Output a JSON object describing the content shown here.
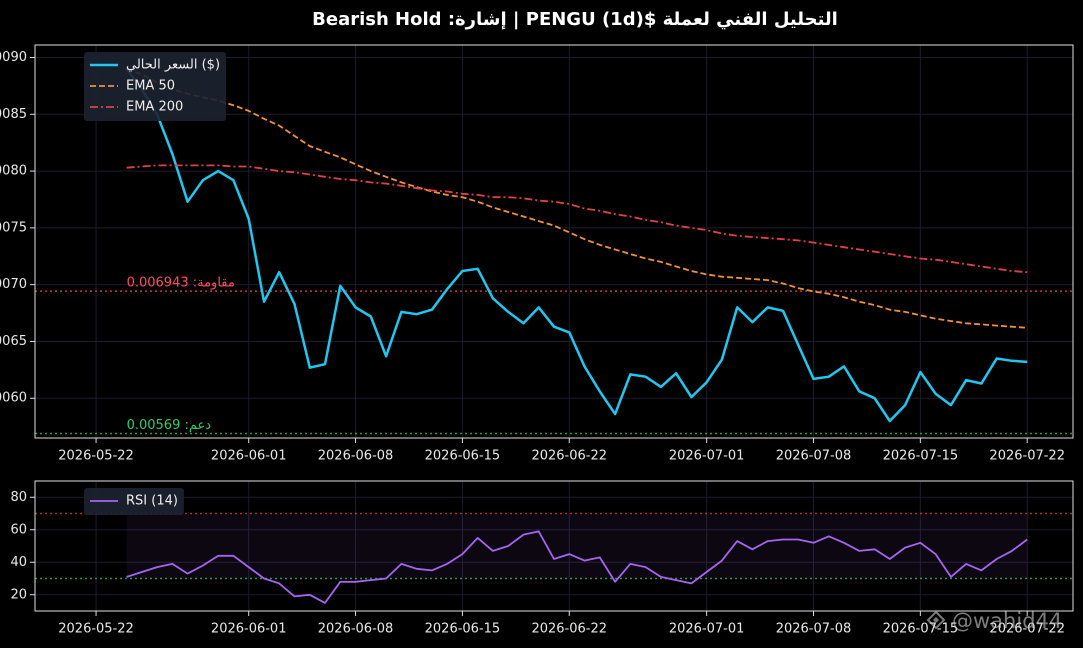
{
  "chart_data": [
    {
      "type": "line",
      "title": "التحليل الفني لعملة $PENGU (1d) | إشارة: Bearish Hold",
      "x": [
        "2026-05-24",
        "2026-05-25",
        "2026-05-26",
        "2026-05-27",
        "2026-05-28",
        "2026-05-29",
        "2026-05-30",
        "2026-05-31",
        "2026-06-01",
        "2026-06-02",
        "2026-06-03",
        "2026-06-04",
        "2026-06-05",
        "2026-06-06",
        "2026-06-07",
        "2026-06-08",
        "2026-06-09",
        "2026-06-10",
        "2026-06-11",
        "2026-06-12",
        "2026-06-13",
        "2026-06-14",
        "2026-06-15",
        "2026-06-16",
        "2026-06-17",
        "2026-06-18",
        "2026-06-19",
        "2026-06-20",
        "2026-06-21",
        "2026-06-22",
        "2026-06-23",
        "2026-06-24",
        "2026-06-25",
        "2026-06-26",
        "2026-06-27",
        "2026-06-28",
        "2026-06-29",
        "2026-06-30",
        "2026-07-01",
        "2026-07-02",
        "2026-07-03",
        "2026-07-04",
        "2026-07-05",
        "2026-07-06",
        "2026-07-07",
        "2026-07-08",
        "2026-07-09",
        "2026-07-10",
        "2026-07-11",
        "2026-07-12",
        "2026-07-13",
        "2026-07-14",
        "2026-07-15",
        "2026-07-16",
        "2026-07-17",
        "2026-07-18",
        "2026-07-19",
        "2026-07-20",
        "2026-07-21",
        "2026-07-22"
      ],
      "series": [
        {
          "name": "السعر الحالي ($)",
          "color": "#22c7f0",
          "dash": "solid",
          "width": 2.5,
          "values": [
            0.0089,
            0.00872,
            0.0085,
            0.00815,
            0.00773,
            0.00792,
            0.008,
            0.00792,
            0.00758,
            0.00685,
            0.00711,
            0.00683,
            0.00627,
            0.0063,
            0.00699,
            0.0068,
            0.00672,
            0.00637,
            0.00676,
            0.00674,
            0.00678,
            0.00696,
            0.00712,
            0.00714,
            0.00688,
            0.00676,
            0.00666,
            0.0068,
            0.00663,
            0.00658,
            0.00628,
            0.00606,
            0.00586,
            0.00621,
            0.00619,
            0.0061,
            0.00622,
            0.00601,
            0.00614,
            0.00634,
            0.0068,
            0.00667,
            0.0068,
            0.00677,
            0.00647,
            0.00617,
            0.00619,
            0.00628,
            0.00606,
            0.006,
            0.0058,
            0.00594,
            0.00623,
            0.00604,
            0.00594,
            0.00616,
            0.00613,
            0.00635,
            0.00633,
            0.00632
          ]
        },
        {
          "name": "EMA 50",
          "color": "#f0913a",
          "dash": "dashed",
          "width": 1.8,
          "values": [
            0.0089,
            0.00885,
            0.00878,
            0.00872,
            0.00868,
            0.00865,
            0.00862,
            0.00858,
            0.00853,
            0.00846,
            0.0084,
            0.00831,
            0.00822,
            0.00817,
            0.00812,
            0.00806,
            0.008,
            0.00795,
            0.0079,
            0.00786,
            0.00782,
            0.00779,
            0.00777,
            0.00773,
            0.00768,
            0.00764,
            0.0076,
            0.00756,
            0.00752,
            0.00746,
            0.0074,
            0.00735,
            0.00731,
            0.00727,
            0.00723,
            0.0072,
            0.00716,
            0.00712,
            0.00709,
            0.00707,
            0.00706,
            0.00705,
            0.00704,
            0.00701,
            0.00697,
            0.00694,
            0.00692,
            0.00689,
            0.00685,
            0.00682,
            0.00678,
            0.00676,
            0.00673,
            0.0067,
            0.00668,
            0.00666,
            0.00665,
            0.00664,
            0.00663,
            0.00662
          ]
        },
        {
          "name": "EMA 200",
          "color": "#e0404e",
          "dash": "dashdot",
          "width": 1.8,
          "values": [
            0.00803,
            0.00804,
            0.00805,
            0.00805,
            0.00805,
            0.00805,
            0.00805,
            0.00804,
            0.00804,
            0.00802,
            0.008,
            0.00799,
            0.00797,
            0.00795,
            0.00793,
            0.00792,
            0.0079,
            0.00789,
            0.00787,
            0.00785,
            0.00783,
            0.00782,
            0.0078,
            0.00779,
            0.00777,
            0.00777,
            0.00776,
            0.00774,
            0.00773,
            0.00771,
            0.00767,
            0.00765,
            0.00762,
            0.0076,
            0.00757,
            0.00755,
            0.00752,
            0.0075,
            0.00748,
            0.00745,
            0.00743,
            0.00742,
            0.00741,
            0.0074,
            0.00739,
            0.00737,
            0.00735,
            0.00733,
            0.00731,
            0.00729,
            0.00727,
            0.00725,
            0.00723,
            0.00722,
            0.0072,
            0.00718,
            0.00716,
            0.00714,
            0.00712,
            0.00711
          ]
        }
      ],
      "hlines": [
        {
          "value": 0.006943,
          "label": "مقاومة: 0.006943",
          "color": "#ff4d5e"
        },
        {
          "value": 0.00569,
          "label": "دعم: 0.00569",
          "color": "#2ecc71"
        }
      ],
      "xlim": [
        "2026-05-18",
        "2026-07-25"
      ],
      "xticks": [
        "2026-05-22",
        "2026-06-01",
        "2026-06-08",
        "2026-06-15",
        "2026-06-22",
        "2026-07-01",
        "2026-07-08",
        "2026-07-15",
        "2026-07-22"
      ],
      "ylim": [
        0.00565,
        0.00911
      ],
      "yticks": [
        {
          "value": 0.006,
          "label": "0.0060"
        },
        0.0065,
        {
          "value": 0.007,
          "label": "0.0070"
        },
        0.0075,
        {
          "value": 0.008,
          "label": "0.0080"
        },
        0.0085,
        {
          "value": 0.009,
          "label": "0.0090"
        }
      ],
      "grid": true,
      "legend": "upper left"
    },
    {
      "type": "line",
      "x": [
        "2026-05-24",
        "2026-05-25",
        "2026-05-26",
        "2026-05-27",
        "2026-05-28",
        "2026-05-29",
        "2026-05-30",
        "2026-05-31",
        "2026-06-01",
        "2026-06-02",
        "2026-06-03",
        "2026-06-04",
        "2026-06-05",
        "2026-06-06",
        "2026-06-07",
        "2026-06-08",
        "2026-06-09",
        "2026-06-10",
        "2026-06-11",
        "2026-06-12",
        "2026-06-13",
        "2026-06-14",
        "2026-06-15",
        "2026-06-16",
        "2026-06-17",
        "2026-06-18",
        "2026-06-19",
        "2026-06-20",
        "2026-06-21",
        "2026-06-22",
        "2026-06-23",
        "2026-06-24",
        "2026-06-25",
        "2026-06-26",
        "2026-06-27",
        "2026-06-28",
        "2026-06-29",
        "2026-06-30",
        "2026-07-01",
        "2026-07-02",
        "2026-07-03",
        "2026-07-04",
        "2026-07-05",
        "2026-07-06",
        "2026-07-07",
        "2026-07-08",
        "2026-07-09",
        "2026-07-10",
        "2026-07-11",
        "2026-07-12",
        "2026-07-13",
        "2026-07-14",
        "2026-07-15",
        "2026-07-16",
        "2026-07-17",
        "2026-07-18",
        "2026-07-19",
        "2026-07-20",
        "2026-07-21",
        "2026-07-22"
      ],
      "series": [
        {
          "name": "RSI (14)",
          "color": "#a565f0",
          "dash": "solid",
          "width": 1.8,
          "values": [
            31,
            34,
            37,
            39,
            33,
            38,
            44,
            44,
            37,
            30,
            27,
            19,
            20,
            15,
            28,
            28,
            29,
            30,
            39,
            36,
            35,
            39,
            45,
            55,
            47,
            50,
            57,
            59,
            42,
            45,
            41,
            43,
            28,
            39,
            37,
            31,
            29,
            27,
            34,
            41,
            53,
            48,
            53,
            54,
            54,
            52,
            56,
            52,
            47,
            48,
            42,
            49,
            52,
            45,
            31,
            39,
            35,
            42,
            47,
            54
          ]
        }
      ],
      "hlines": [
        {
          "value": 70,
          "color": "#e0404e"
        },
        {
          "value": 30,
          "color": "#2ecc71"
        }
      ],
      "shade_between_hlines": true,
      "xlim": [
        "2026-05-18",
        "2026-07-25"
      ],
      "xticks": [
        "2026-05-22",
        "2026-06-01",
        "2026-06-08",
        "2026-06-15",
        "2026-06-22",
        "2026-07-01",
        "2026-07-08",
        "2026-07-15",
        "2026-07-22"
      ],
      "ylim": [
        10,
        90
      ],
      "yticks": [
        20,
        40,
        60,
        80
      ],
      "grid": true,
      "legend": "upper left"
    }
  ],
  "watermark": "@wahid44"
}
